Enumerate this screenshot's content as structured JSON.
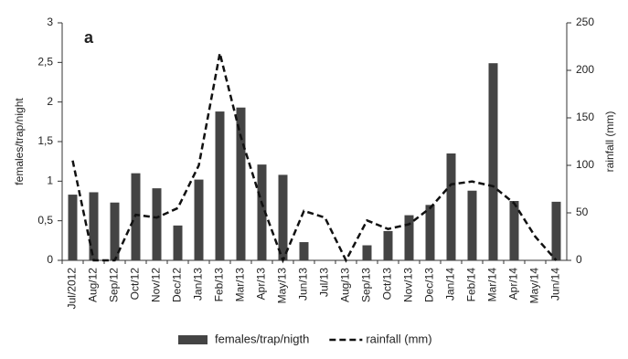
{
  "chart_data": {
    "type": "bar",
    "panel_label": "a",
    "y_label": "females/trap/night",
    "y2_label": "rainfall (mm)",
    "categories": [
      "Jul/2012",
      "Aug/12",
      "Sep/12",
      "Oct/12",
      "Nov/12",
      "Dec/12",
      "Jan/13",
      "Feb/13",
      "Mar/13",
      "Apr/13",
      "May/13",
      "Jun/13",
      "Jul/13",
      "Aug/13",
      "Sep/13",
      "Oct/13",
      "Nov/13",
      "Dec/13",
      "Jan/14",
      "Feb/14",
      "Mar/14",
      "Apr/14",
      "May/14",
      "Jun/14"
    ],
    "series": [
      {
        "name": "females/trap/nigth",
        "color": "#444444",
        "kind": "bar",
        "values": [
          0.83,
          0.86,
          0.73,
          1.1,
          0.91,
          0.44,
          1.02,
          1.88,
          1.93,
          1.21,
          1.08,
          0.23,
          0,
          0,
          0.19,
          0.37,
          0.57,
          0.7,
          1.35,
          0.88,
          2.49,
          0.75,
          0,
          0.74
        ]
      },
      {
        "name": "rainfall (mm)",
        "color": "#111111",
        "kind": "line",
        "dashed": true,
        "axis": "y2",
        "values": [
          105,
          0,
          0,
          48,
          45,
          55,
          100,
          218,
          130,
          60,
          0,
          52,
          45,
          0,
          42,
          33,
          38,
          55,
          80,
          83,
          78,
          60,
          25,
          0
        ]
      }
    ],
    "ylim": [
      0,
      3
    ],
    "yticks": [
      0,
      {
        "value": 0.5,
        "label": "0,5"
      },
      1,
      {
        "value": 1.5,
        "label": "1,5"
      },
      2,
      {
        "value": 2.5,
        "label": "2,5"
      },
      3
    ],
    "y2lim": [
      0,
      250
    ],
    "y2ticks": [
      0,
      50,
      100,
      150,
      200,
      250
    ],
    "grid": false,
    "legend": "bottom"
  }
}
